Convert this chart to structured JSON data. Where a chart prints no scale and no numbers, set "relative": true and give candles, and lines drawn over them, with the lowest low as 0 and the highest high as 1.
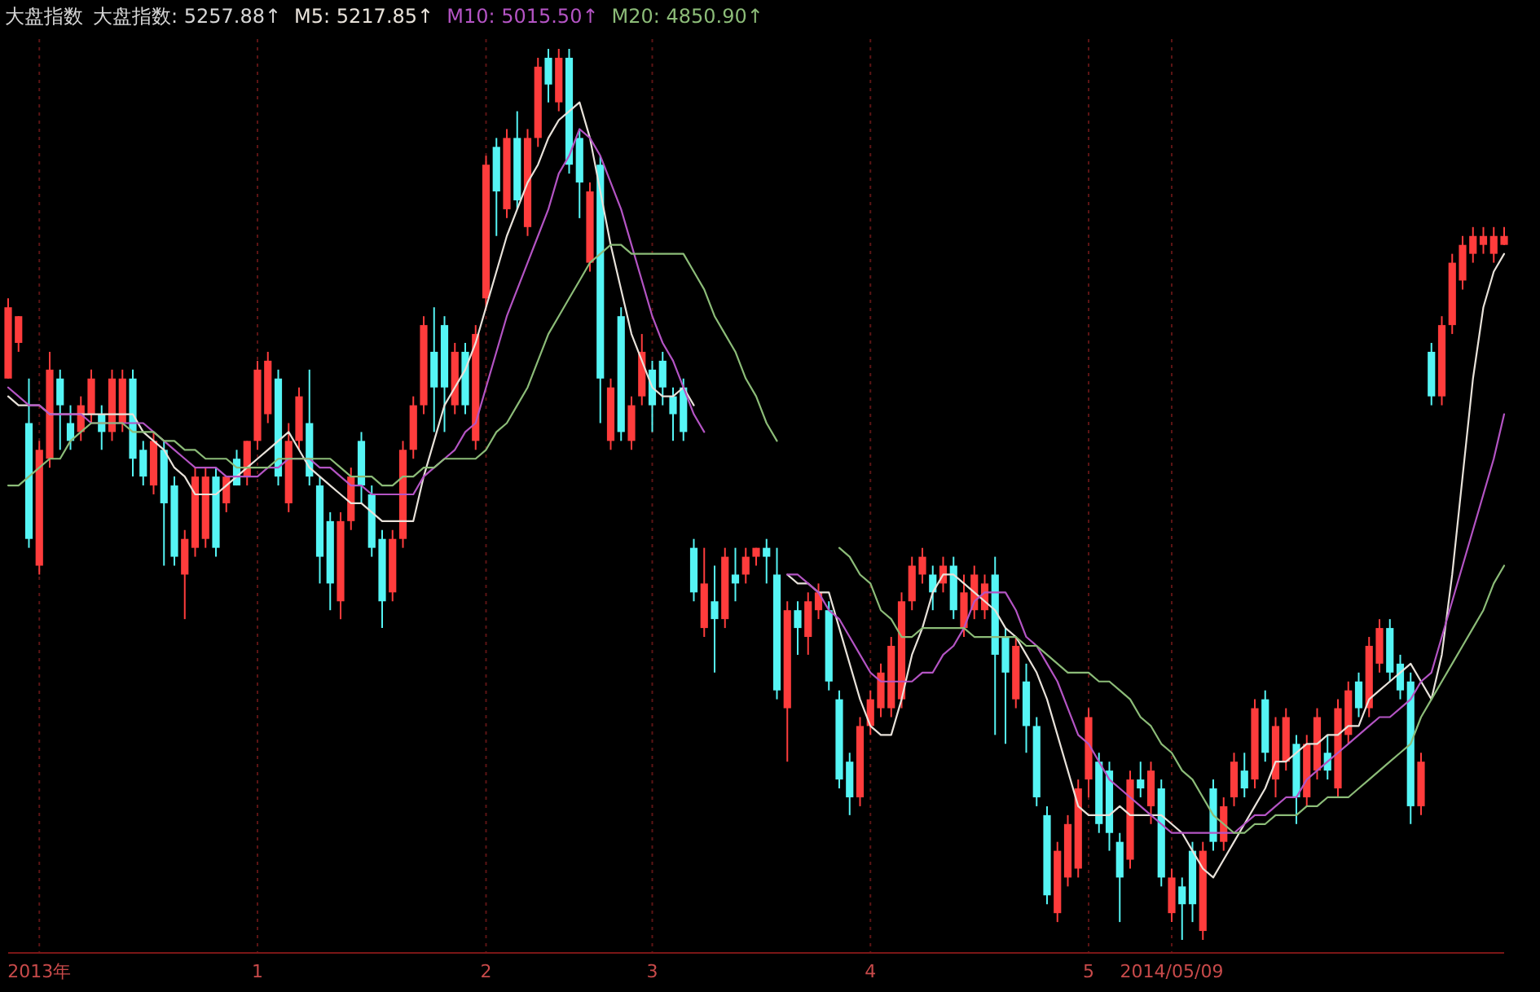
{
  "chart_data": {
    "type": "candlestick",
    "relative": true,
    "title": "大盘指数",
    "annotations": [
      "大盘指数: 5257.88↑",
      ": 5217.85↑",
      ": 5015.50↑",
      ": 4850.90↑"
    ],
    "legend": "top left",
    "grid": "x",
    "categories": [
      null,
      null,
      null,
      "2013年",
      null,
      null,
      null,
      null,
      null,
      null,
      null,
      null,
      null,
      null,
      null,
      null,
      null,
      null,
      null,
      null,
      null,
      null,
      null,
      null,
      "1",
      null,
      null,
      null,
      null,
      null,
      null,
      null,
      null,
      null,
      null,
      null,
      null,
      null,
      null,
      null,
      null,
      null,
      null,
      null,
      null,
      null,
      "2",
      null,
      null,
      null,
      null,
      null,
      null,
      null,
      null,
      null,
      null,
      null,
      null,
      null,
      null,
      null,
      "3",
      null,
      null,
      null,
      null,
      null,
      null,
      null,
      null,
      null,
      null,
      null,
      null,
      null,
      null,
      null,
      null,
      null,
      null,
      null,
      null,
      "4",
      null,
      null,
      null,
      null,
      null,
      null,
      null,
      null,
      null,
      null,
      null,
      null,
      null,
      null,
      null,
      null,
      null,
      null,
      null,
      null,
      "5",
      null,
      null,
      null,
      null,
      null,
      null,
      null,
      "2014/05/09",
      null,
      null,
      null,
      null,
      null,
      null,
      null,
      null,
      null,
      null,
      null,
      null,
      null,
      null,
      null,
      null,
      null,
      null,
      null,
      null,
      null,
      null,
      null,
      null,
      null,
      null,
      null,
      null,
      null,
      null,
      null,
      null
    ],
    "ohlc": [
      [
        0.63,
        0.72,
        0.63,
        0.71
      ],
      [
        0.67,
        0.7,
        0.66,
        0.7
      ],
      [
        0.58,
        0.63,
        0.44,
        0.45
      ],
      [
        0.42,
        0.56,
        0.41,
        0.55
      ],
      [
        0.54,
        0.66,
        0.53,
        0.64
      ],
      [
        0.63,
        0.64,
        0.55,
        0.6
      ],
      [
        0.58,
        0.6,
        0.55,
        0.56
      ],
      [
        0.57,
        0.61,
        0.56,
        0.6
      ],
      [
        0.59,
        0.64,
        0.58,
        0.63
      ],
      [
        0.59,
        0.6,
        0.55,
        0.57
      ],
      [
        0.57,
        0.64,
        0.56,
        0.63
      ],
      [
        0.58,
        0.64,
        0.57,
        0.63
      ],
      [
        0.63,
        0.64,
        0.52,
        0.54
      ],
      [
        0.55,
        0.56,
        0.51,
        0.52
      ],
      [
        0.51,
        0.57,
        0.5,
        0.56
      ],
      [
        0.55,
        0.56,
        0.42,
        0.49
      ],
      [
        0.51,
        0.52,
        0.42,
        0.43
      ],
      [
        0.41,
        0.46,
        0.36,
        0.45
      ],
      [
        0.44,
        0.53,
        0.43,
        0.52
      ],
      [
        0.45,
        0.53,
        0.44,
        0.52
      ],
      [
        0.52,
        0.53,
        0.43,
        0.44
      ],
      [
        0.49,
        0.52,
        0.48,
        0.52
      ],
      [
        0.54,
        0.55,
        0.51,
        0.51
      ],
      [
        0.52,
        0.56,
        0.51,
        0.56
      ],
      [
        0.56,
        0.65,
        0.55,
        0.64
      ],
      [
        0.59,
        0.66,
        0.58,
        0.65
      ],
      [
        0.63,
        0.64,
        0.51,
        0.52
      ],
      [
        0.49,
        0.58,
        0.48,
        0.56
      ],
      [
        0.56,
        0.62,
        0.55,
        0.61
      ],
      [
        0.58,
        0.64,
        0.51,
        0.52
      ],
      [
        0.51,
        0.52,
        0.4,
        0.43
      ],
      [
        0.47,
        0.48,
        0.37,
        0.4
      ],
      [
        0.38,
        0.48,
        0.36,
        0.47
      ],
      [
        0.47,
        0.53,
        0.46,
        0.52
      ],
      [
        0.56,
        0.57,
        0.49,
        0.51
      ],
      [
        0.5,
        0.51,
        0.43,
        0.44
      ],
      [
        0.45,
        0.46,
        0.35,
        0.38
      ],
      [
        0.39,
        0.46,
        0.38,
        0.45
      ],
      [
        0.45,
        0.56,
        0.44,
        0.55
      ],
      [
        0.55,
        0.61,
        0.54,
        0.6
      ],
      [
        0.6,
        0.7,
        0.59,
        0.69
      ],
      [
        0.66,
        0.71,
        0.57,
        0.62
      ],
      [
        0.69,
        0.7,
        0.57,
        0.62
      ],
      [
        0.6,
        0.67,
        0.59,
        0.66
      ],
      [
        0.66,
        0.67,
        0.59,
        0.6
      ],
      [
        0.56,
        0.69,
        0.55,
        0.68
      ],
      [
        0.72,
        0.88,
        0.71,
        0.87
      ],
      [
        0.89,
        0.9,
        0.79,
        0.84
      ],
      [
        0.82,
        0.91,
        0.81,
        0.9
      ],
      [
        0.9,
        0.93,
        0.82,
        0.83
      ],
      [
        0.8,
        0.91,
        0.79,
        0.9
      ],
      [
        0.9,
        0.99,
        0.89,
        0.98
      ],
      [
        0.99,
        1.0,
        0.94,
        0.96
      ],
      [
        0.94,
        1.0,
        0.93,
        0.99
      ],
      [
        0.99,
        1.0,
        0.86,
        0.87
      ],
      [
        0.9,
        0.91,
        0.81,
        0.85
      ],
      [
        0.76,
        0.85,
        0.75,
        0.84
      ],
      [
        0.87,
        0.88,
        0.58,
        0.63
      ],
      [
        0.56,
        0.63,
        0.55,
        0.62
      ],
      [
        0.7,
        0.71,
        0.56,
        0.57
      ],
      [
        0.56,
        0.61,
        0.55,
        0.6
      ],
      [
        0.61,
        0.68,
        0.6,
        0.66
      ],
      [
        0.64,
        0.65,
        0.57,
        0.6
      ],
      [
        0.65,
        0.66,
        0.6,
        0.62
      ],
      [
        0.61,
        0.62,
        0.56,
        0.59
      ],
      [
        0.62,
        0.63,
        0.56,
        0.57
      ],
      [
        0.44,
        0.45,
        0.38,
        0.39
      ],
      [
        0.35,
        0.44,
        0.34,
        0.4
      ],
      [
        0.38,
        0.42,
        0.3,
        0.36
      ],
      [
        0.36,
        0.44,
        0.35,
        0.43
      ],
      [
        0.41,
        0.44,
        0.38,
        0.4
      ],
      [
        0.41,
        0.44,
        0.4,
        0.43
      ],
      [
        0.43,
        0.44,
        0.42,
        0.44
      ],
      [
        0.44,
        0.45,
        0.4,
        0.43
      ],
      [
        0.41,
        0.44,
        0.27,
        0.28
      ],
      [
        0.26,
        0.38,
        0.2,
        0.37
      ],
      [
        0.37,
        0.38,
        0.32,
        0.35
      ],
      [
        0.34,
        0.39,
        0.32,
        0.38
      ],
      [
        0.37,
        0.4,
        0.36,
        0.39
      ],
      [
        0.37,
        0.38,
        0.28,
        0.29
      ],
      [
        0.27,
        0.28,
        0.17,
        0.18
      ],
      [
        0.2,
        0.21,
        0.14,
        0.16
      ],
      [
        0.16,
        0.25,
        0.15,
        0.24
      ],
      [
        0.24,
        0.28,
        0.23,
        0.27
      ],
      [
        0.26,
        0.31,
        0.25,
        0.3
      ],
      [
        0.26,
        0.34,
        0.25,
        0.33
      ],
      [
        0.27,
        0.39,
        0.26,
        0.38
      ],
      [
        0.38,
        0.43,
        0.37,
        0.42
      ],
      [
        0.41,
        0.44,
        0.4,
        0.43
      ],
      [
        0.41,
        0.42,
        0.37,
        0.39
      ],
      [
        0.4,
        0.43,
        0.39,
        0.42
      ],
      [
        0.42,
        0.43,
        0.36,
        0.37
      ],
      [
        0.35,
        0.41,
        0.34,
        0.39
      ],
      [
        0.37,
        0.42,
        0.36,
        0.41
      ],
      [
        0.37,
        0.41,
        0.36,
        0.4
      ],
      [
        0.41,
        0.43,
        0.23,
        0.32
      ],
      [
        0.34,
        0.35,
        0.22,
        0.3
      ],
      [
        0.27,
        0.34,
        0.26,
        0.33
      ],
      [
        0.29,
        0.31,
        0.21,
        0.24
      ],
      [
        0.24,
        0.25,
        0.15,
        0.16
      ],
      [
        0.14,
        0.15,
        0.04,
        0.05
      ],
      [
        0.03,
        0.11,
        0.02,
        0.1
      ],
      [
        0.07,
        0.14,
        0.06,
        0.13
      ],
      [
        0.08,
        0.18,
        0.07,
        0.17
      ],
      [
        0.18,
        0.26,
        0.16,
        0.25
      ],
      [
        0.2,
        0.21,
        0.12,
        0.13
      ],
      [
        0.19,
        0.2,
        0.1,
        0.12
      ],
      [
        0.11,
        0.12,
        0.02,
        0.07
      ],
      [
        0.09,
        0.19,
        0.08,
        0.18
      ],
      [
        0.18,
        0.2,
        0.16,
        0.17
      ],
      [
        0.15,
        0.2,
        0.13,
        0.19
      ],
      [
        0.17,
        0.18,
        0.06,
        0.07
      ],
      [
        0.03,
        0.08,
        0.02,
        0.07
      ],
      [
        0.06,
        0.07,
        0.0,
        0.04
      ],
      [
        0.1,
        0.11,
        0.02,
        0.04
      ],
      [
        0.01,
        0.11,
        0.0,
        0.1
      ],
      [
        0.17,
        0.18,
        0.1,
        0.11
      ],
      [
        0.11,
        0.16,
        0.1,
        0.15
      ],
      [
        0.16,
        0.21,
        0.15,
        0.2
      ],
      [
        0.19,
        0.21,
        0.16,
        0.17
      ],
      [
        0.18,
        0.27,
        0.17,
        0.26
      ],
      [
        0.27,
        0.28,
        0.2,
        0.21
      ],
      [
        0.18,
        0.25,
        0.16,
        0.24
      ],
      [
        0.2,
        0.26,
        0.19,
        0.25
      ],
      [
        0.22,
        0.23,
        0.13,
        0.16
      ],
      [
        0.16,
        0.23,
        0.15,
        0.22
      ],
      [
        0.19,
        0.26,
        0.18,
        0.25
      ],
      [
        0.21,
        0.23,
        0.18,
        0.19
      ],
      [
        0.17,
        0.27,
        0.16,
        0.26
      ],
      [
        0.23,
        0.29,
        0.22,
        0.28
      ],
      [
        0.29,
        0.3,
        0.25,
        0.26
      ],
      [
        0.26,
        0.34,
        0.25,
        0.33
      ],
      [
        0.31,
        0.36,
        0.3,
        0.35
      ],
      [
        0.35,
        0.36,
        0.29,
        0.3
      ],
      [
        0.31,
        0.32,
        0.27,
        0.28
      ],
      [
        0.29,
        0.3,
        0.13,
        0.15
      ],
      [
        0.15,
        0.21,
        0.14,
        0.2
      ],
      [
        0.66,
        0.67,
        0.6,
        0.61
      ],
      [
        0.61,
        0.7,
        0.6,
        0.69
      ],
      [
        0.69,
        0.77,
        0.68,
        0.76
      ],
      [
        0.74,
        0.79,
        0.73,
        0.78
      ],
      [
        0.77,
        0.8,
        0.76,
        0.79
      ],
      [
        0.78,
        0.8,
        0.77,
        0.79
      ],
      [
        0.77,
        0.8,
        0.76,
        0.79
      ],
      [
        0.78,
        0.8,
        0.78,
        0.79
      ]
    ],
    "colors": [
      "#ff3c3c",
      "#ff3c3c",
      "#55f5f5",
      "#ff3c3c",
      "#ff3c3c",
      "#55f5f5",
      "#55f5f5",
      "#ff3c3c",
      "#ff3c3c",
      "#55f5f5",
      "#ff3c3c",
      "#ff3c3c",
      "#55f5f5",
      "#55f5f5",
      "#ff3c3c",
      "#55f5f5",
      "#55f5f5",
      "#ff3c3c",
      "#ff3c3c",
      "#ff3c3c",
      "#55f5f5",
      "#ff3c3c",
      "#55f5f5",
      "#ff3c3c",
      "#ff3c3c",
      "#ff3c3c",
      "#55f5f5",
      "#ff3c3c",
      "#ff3c3c",
      "#55f5f5",
      "#55f5f5",
      "#55f5f5",
      "#ff3c3c",
      "#ff3c3c",
      "#55f5f5",
      "#55f5f5",
      "#55f5f5",
      "#ff3c3c",
      "#ff3c3c",
      "#ff3c3c",
      "#ff3c3c",
      "#55f5f5",
      "#55f5f5",
      "#ff3c3c",
      "#55f5f5",
      "#ff3c3c",
      "#ff3c3c",
      "#55f5f5",
      "#ff3c3c",
      "#55f5f5",
      "#ff3c3c",
      "#ff3c3c",
      "#55f5f5",
      "#ff3c3c",
      "#55f5f5",
      "#55f5f5",
      "#ff3c3c",
      "#55f5f5",
      "#ff3c3c",
      "#55f5f5",
      "#ff3c3c",
      "#ff3c3c",
      "#55f5f5",
      "#55f5f5",
      "#55f5f5",
      "#55f5f5",
      "#55f5f5",
      "#ff3c3c",
      "#55f5f5",
      "#ff3c3c",
      "#55f5f5",
      "#ff3c3c",
      "#ff3c3c",
      "#55f5f5",
      "#55f5f5",
      "#ff3c3c",
      "#55f5f5",
      "#ff3c3c",
      "#ff3c3c",
      "#55f5f5",
      "#55f5f5",
      "#55f5f5",
      "#ff3c3c",
      "#ff3c3c",
      "#ff3c3c",
      "#ff3c3c",
      "#ff3c3c",
      "#ff3c3c",
      "#ff3c3c",
      "#55f5f5",
      "#ff3c3c",
      "#55f5f5",
      "#ff3c3c",
      "#ff3c3c",
      "#ff3c3c",
      "#55f5f5",
      "#55f5f5",
      "#ff3c3c",
      "#55f5f5",
      "#55f5f5",
      "#55f5f5",
      "#ff3c3c",
      "#ff3c3c",
      "#ff3c3c",
      "#ff3c3c",
      "#55f5f5",
      "#55f5f5",
      "#55f5f5",
      "#ff3c3c",
      "#55f5f5",
      "#ff3c3c",
      "#55f5f5",
      "#ff3c3c",
      "#55f5f5",
      "#55f5f5",
      "#ff3c3c",
      "#55f5f5",
      "#ff3c3c",
      "#ff3c3c",
      "#55f5f5",
      "#ff3c3c",
      "#55f5f5",
      "#ff3c3c",
      "#ff3c3c",
      "#55f5f5",
      "#ff3c3c",
      "#ff3c3c",
      "#55f5f5",
      "#ff3c3c",
      "#ff3c3c",
      "#55f5f5",
      "#ff3c3c",
      "#ff3c3c",
      "#55f5f5",
      "#55f5f5",
      "#55f5f5",
      "#ff3c3c",
      "#55f5f5",
      "#ff3c3c",
      "#ff3c3c",
      "#ff3c3c",
      "#ff3c3c",
      "#ff3c3c",
      "#ff3c3c",
      "#ff3c3c"
    ],
    "series": [
      {
        "name": "M5",
        "type": "line",
        "color": "#e8e2da",
        "values": [
          0.61,
          0.6,
          0.6,
          0.6,
          0.59,
          0.59,
          0.59,
          0.59,
          0.59,
          0.59,
          0.59,
          0.59,
          0.59,
          0.57,
          0.56,
          0.55,
          0.53,
          0.52,
          0.5,
          0.5,
          0.5,
          0.51,
          0.52,
          0.53,
          0.54,
          0.55,
          0.56,
          0.57,
          0.55,
          0.53,
          0.52,
          0.51,
          0.5,
          0.49,
          0.49,
          0.48,
          0.47,
          0.47,
          0.47,
          0.47,
          0.52,
          0.56,
          0.6,
          0.62,
          0.64,
          0.67,
          0.71,
          0.75,
          0.79,
          0.82,
          0.85,
          0.87,
          0.9,
          0.92,
          0.93,
          0.94,
          0.9,
          0.84,
          0.78,
          0.73,
          0.68,
          0.65,
          0.62,
          0.61,
          0.61,
          0.62,
          0.6,
          null,
          null,
          null,
          null,
          null,
          null,
          null,
          null,
          0.41,
          0.4,
          0.4,
          0.39,
          0.39,
          0.35,
          0.31,
          0.27,
          0.24,
          0.23,
          0.23,
          0.27,
          0.32,
          0.35,
          0.39,
          0.41,
          0.41,
          0.4,
          0.39,
          0.38,
          0.37,
          0.35,
          0.34,
          0.32,
          0.3,
          0.27,
          0.23,
          0.19,
          0.15,
          0.14,
          0.14,
          0.14,
          0.15,
          0.14,
          0.14,
          0.14,
          0.14,
          0.13,
          0.12,
          0.1,
          0.08,
          0.07,
          0.09,
          0.11,
          0.13,
          0.15,
          0.17,
          0.2,
          0.2,
          0.21,
          0.22,
          0.22,
          0.23,
          0.23,
          0.24,
          0.24,
          0.27,
          0.28,
          0.29,
          0.3,
          0.31,
          0.29,
          0.27,
          0.32,
          0.41,
          0.52,
          0.63,
          0.71,
          0.75,
          0.77
        ]
      },
      {
        "name": "M10",
        "type": "line",
        "color": "#b454c4",
        "values": [
          0.62,
          0.61,
          0.6,
          0.6,
          0.59,
          0.59,
          0.59,
          0.59,
          0.58,
          0.58,
          0.58,
          0.58,
          0.58,
          0.58,
          0.57,
          0.56,
          0.55,
          0.54,
          0.53,
          0.53,
          0.53,
          0.52,
          0.52,
          0.52,
          0.52,
          0.53,
          0.53,
          0.54,
          0.54,
          0.54,
          0.53,
          0.53,
          0.52,
          0.51,
          0.51,
          0.5,
          0.5,
          0.5,
          0.5,
          0.5,
          0.52,
          0.53,
          0.54,
          0.55,
          0.57,
          0.58,
          0.62,
          0.66,
          0.7,
          0.73,
          0.76,
          0.79,
          0.82,
          0.86,
          0.88,
          0.91,
          0.9,
          0.88,
          0.85,
          0.82,
          0.78,
          0.74,
          0.7,
          0.67,
          0.65,
          0.62,
          0.59,
          0.57,
          null,
          null,
          null,
          null,
          null,
          null,
          null,
          0.41,
          0.41,
          0.4,
          0.39,
          0.37,
          0.36,
          0.34,
          0.32,
          0.3,
          0.29,
          0.29,
          0.29,
          0.29,
          0.3,
          0.3,
          0.32,
          0.33,
          0.35,
          0.38,
          0.39,
          0.39,
          0.39,
          0.37,
          0.34,
          0.33,
          0.31,
          0.29,
          0.26,
          0.23,
          0.22,
          0.2,
          0.18,
          0.17,
          0.16,
          0.15,
          0.14,
          0.13,
          0.12,
          0.12,
          0.12,
          0.12,
          0.12,
          0.12,
          0.12,
          0.13,
          0.14,
          0.14,
          0.15,
          0.16,
          0.16,
          0.18,
          0.19,
          0.2,
          0.21,
          0.22,
          0.23,
          0.24,
          0.25,
          0.25,
          0.26,
          0.27,
          0.29,
          0.3,
          0.34,
          0.38,
          0.42,
          0.46,
          0.5,
          0.54,
          0.59
        ]
      },
      {
        "name": "M20",
        "type": "line",
        "color": "#8cbc78",
        "values": [
          0.51,
          0.51,
          0.52,
          0.53,
          0.54,
          0.54,
          0.56,
          0.57,
          0.58,
          0.58,
          0.58,
          0.58,
          0.57,
          0.57,
          0.57,
          0.56,
          0.56,
          0.55,
          0.55,
          0.54,
          0.54,
          0.54,
          0.53,
          0.53,
          0.53,
          0.53,
          0.54,
          0.54,
          0.54,
          0.54,
          0.54,
          0.54,
          0.53,
          0.52,
          0.52,
          0.52,
          0.51,
          0.51,
          0.52,
          0.52,
          0.53,
          0.53,
          0.54,
          0.54,
          0.54,
          0.54,
          0.55,
          0.57,
          0.58,
          0.6,
          0.62,
          0.65,
          0.68,
          0.7,
          0.72,
          0.74,
          0.76,
          0.77,
          0.78,
          0.78,
          0.77,
          0.77,
          0.77,
          0.77,
          0.77,
          0.77,
          0.75,
          0.73,
          0.7,
          0.68,
          0.66,
          0.63,
          0.61,
          0.58,
          0.56,
          null,
          null,
          null,
          null,
          null,
          0.44,
          0.43,
          0.41,
          0.4,
          0.37,
          0.36,
          0.34,
          0.34,
          0.35,
          0.35,
          0.35,
          0.35,
          0.35,
          0.34,
          0.34,
          0.34,
          0.34,
          0.34,
          0.33,
          0.33,
          0.32,
          0.31,
          0.3,
          0.3,
          0.3,
          0.29,
          0.29,
          0.28,
          0.27,
          0.25,
          0.24,
          0.22,
          0.21,
          0.19,
          0.18,
          0.16,
          0.14,
          0.13,
          0.12,
          0.12,
          0.13,
          0.13,
          0.14,
          0.14,
          0.14,
          0.15,
          0.15,
          0.16,
          0.16,
          0.16,
          0.17,
          0.18,
          0.19,
          0.2,
          0.21,
          0.22,
          0.25,
          0.27,
          0.29,
          0.31,
          0.33,
          0.35,
          0.37,
          0.4,
          0.42
        ]
      }
    ]
  }
}
